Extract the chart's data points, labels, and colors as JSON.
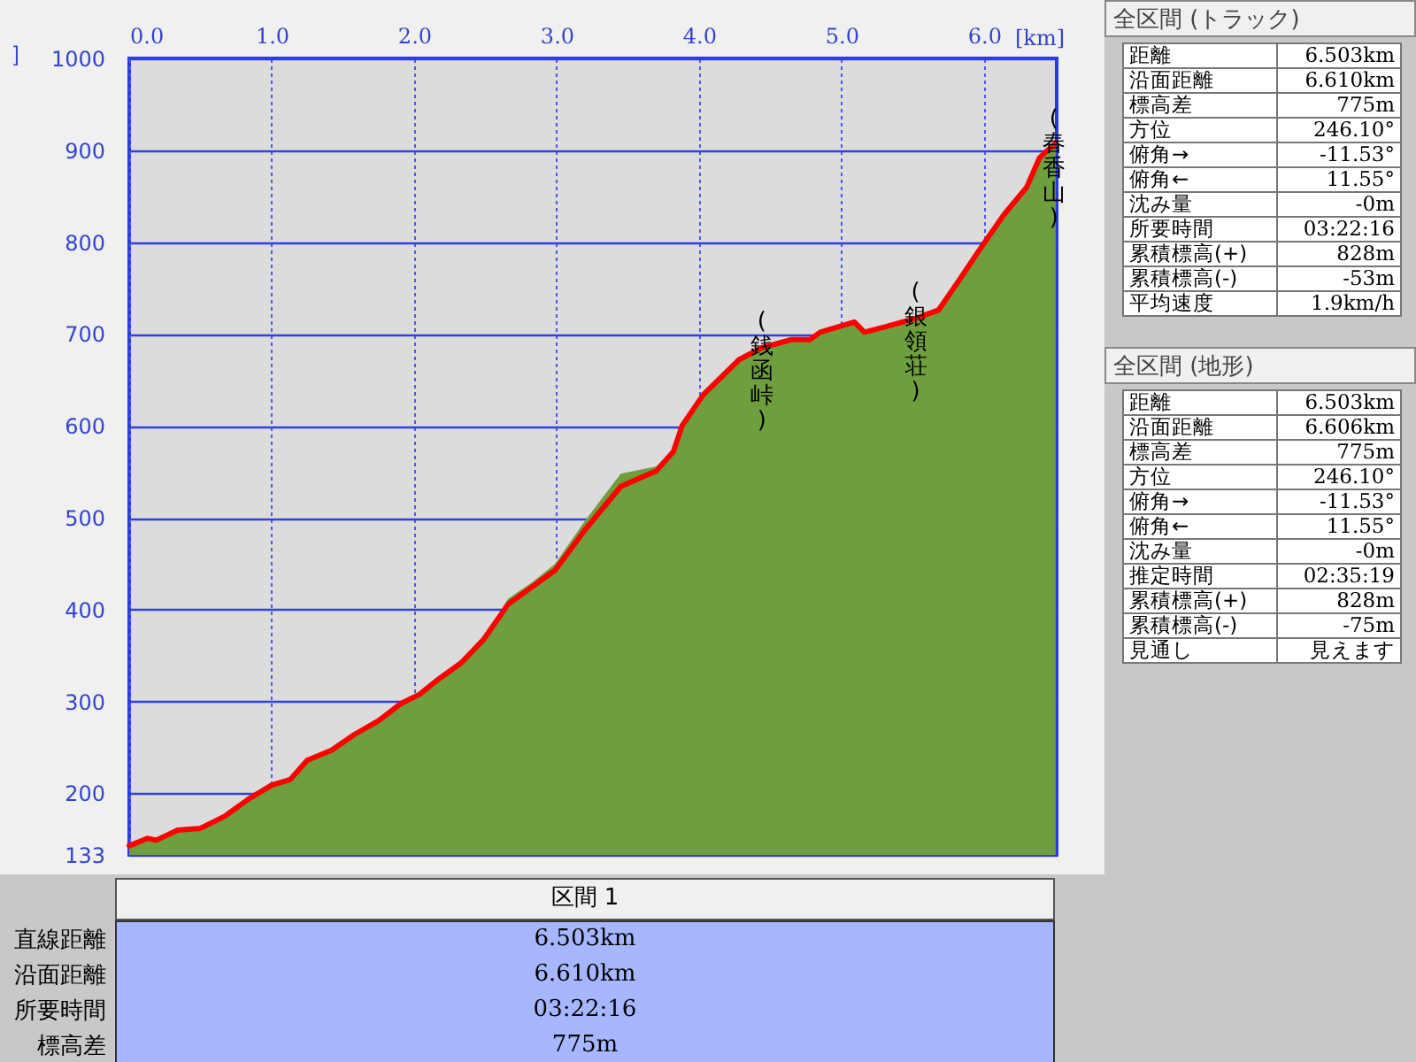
{
  "chart_data": [
    {
      "type": "area",
      "xlabel": "[km]",
      "ylabel": "]",
      "xlim": [
        0,
        6.51
      ],
      "ylim": [
        133,
        1000
      ],
      "xticks": [
        {
          "value": 0,
          "label": "0.0"
        },
        {
          "value": 1,
          "label": "1.0"
        },
        {
          "value": 2,
          "label": "2.0"
        },
        {
          "value": 3,
          "label": "3.0"
        },
        {
          "value": 4,
          "label": "4.0"
        },
        {
          "value": 5,
          "label": "5.0"
        },
        {
          "value": 6,
          "label": "6.0"
        }
      ],
      "yticks": [
        133,
        200,
        300,
        400,
        500,
        600,
        700,
        800,
        900,
        1000
      ],
      "grid": true,
      "series": [
        {
          "type": "area",
          "color": "#6f9e3c",
          "x": [
            0,
            0.13,
            0.19,
            0.34,
            0.5,
            0.67,
            0.84,
            1.0,
            1.13,
            1.25,
            1.42,
            1.58,
            1.75,
            1.91,
            2.04,
            2.16,
            2.33,
            2.49,
            2.66,
            2.83,
            2.99,
            3.2,
            3.45,
            3.7,
            3.82,
            3.88,
            4.03,
            4.28,
            4.44,
            4.65,
            4.78,
            4.85,
            4.98,
            5.09,
            5.16,
            5.31,
            5.52,
            5.68,
            5.81,
            5.97,
            6.14,
            6.3,
            6.39,
            6.49,
            6.503
          ],
          "values": [
            143,
            151,
            149,
            160,
            162,
            175,
            194,
            209,
            215,
            236,
            247,
            264,
            279,
            298,
            308,
            323,
            342,
            368,
            412,
            430,
            450,
            497,
            548,
            556,
            572,
            600,
            634,
            672,
            685,
            694,
            694,
            702,
            708,
            713,
            702,
            708,
            717,
            726,
            755,
            792,
            830,
            860,
            892,
            906,
            908
          ]
        },
        {
          "type": "line",
          "color": "#ff0000",
          "x": [
            0,
            0.13,
            0.19,
            0.34,
            0.5,
            0.67,
            0.84,
            1.0,
            1.13,
            1.25,
            1.42,
            1.58,
            1.75,
            1.91,
            2.04,
            2.16,
            2.33,
            2.49,
            2.66,
            2.83,
            2.99,
            3.2,
            3.45,
            3.7,
            3.82,
            3.88,
            4.03,
            4.28,
            4.44,
            4.65,
            4.78,
            4.85,
            4.98,
            5.09,
            5.16,
            5.31,
            5.52,
            5.68,
            5.81,
            5.97,
            6.14,
            6.3,
            6.39,
            6.49,
            6.503
          ],
          "values": [
            143,
            151,
            149,
            160,
            162,
            175,
            194,
            209,
            215,
            236,
            247,
            264,
            279,
            298,
            308,
            323,
            342,
            368,
            406,
            425,
            443,
            487,
            534,
            551,
            572,
            600,
            634,
            672,
            685,
            694,
            694,
            702,
            708,
            713,
            702,
            708,
            717,
            726,
            755,
            792,
            830,
            860,
            892,
            906,
            908
          ]
        }
      ],
      "annotations": [
        {
          "text": "(銭函峠)",
          "x": 4.44,
          "y": 685
        },
        {
          "text": "(銀領荘)",
          "x": 5.52,
          "y": 717
        },
        {
          "text": "(春香山)",
          "x": 6.49,
          "y": 906
        }
      ]
    },
    {
      "type": "other",
      "title": "全区間 (トラック)",
      "categories": [
        "距離",
        "沿面距離",
        "標高差",
        "方位",
        "俯角→",
        "俯角←",
        "沈み量",
        "所要時間",
        "累積標高(+)",
        "累積標高(-)",
        "平均速度"
      ],
      "value_labels": [
        "6.503km",
        "6.610km",
        "775m",
        "246.10°",
        "-11.53°",
        "11.55°",
        "-0m",
        "03:22:16",
        "828m",
        "-53m",
        "1.9km/h"
      ]
    },
    {
      "type": "other",
      "title": "全区間 (地形)",
      "categories": [
        "距離",
        "沿面距離",
        "標高差",
        "方位",
        "俯角→",
        "俯角←",
        "沈み量",
        "推定時間",
        "累積標高(+)",
        "累積標高(-)",
        "見通し"
      ],
      "value_labels": [
        "6.503km",
        "6.606km",
        "775m",
        "246.10°",
        "-11.53°",
        "11.55°",
        "-0m",
        "02:35:19",
        "828m",
        "-75m",
        "見えます"
      ]
    },
    {
      "type": "other",
      "title": "区間 1",
      "categories": [
        "直線距離",
        "沿面距離",
        "所要時間",
        "標高差"
      ],
      "value_labels": [
        "6.503km",
        "6.610km",
        "03:22:16",
        "775m"
      ]
    }
  ]
}
